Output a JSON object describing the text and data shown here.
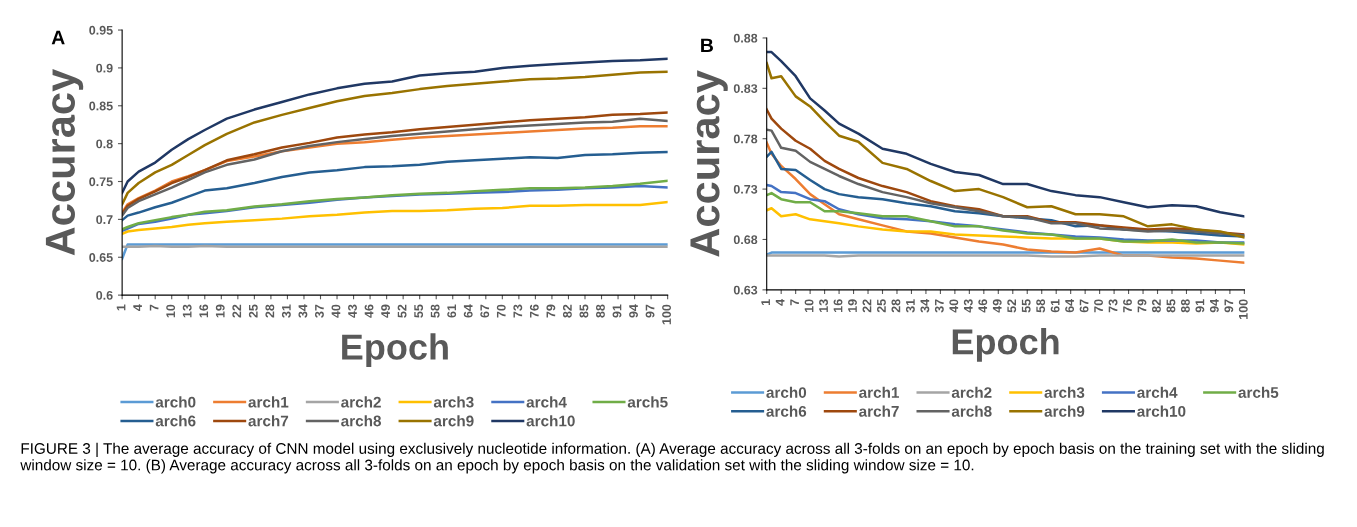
{
  "chart_data": [
    {
      "type": "line",
      "title": "A",
      "xlabel": "Epoch",
      "ylabel": "Accuracy",
      "legend": "bottom",
      "x": [
        1,
        2,
        4,
        7,
        10,
        13,
        16,
        20,
        25,
        30,
        35,
        40,
        45,
        50,
        55,
        60,
        65,
        70,
        75,
        80,
        85,
        90,
        95,
        100
      ],
      "xlim": [
        1,
        100
      ],
      "xticks": [
        1,
        4,
        7,
        10,
        13,
        16,
        19,
        22,
        25,
        28,
        31,
        34,
        37,
        40,
        43,
        46,
        49,
        52,
        55,
        58,
        61,
        64,
        67,
        70,
        73,
        76,
        79,
        82,
        85,
        88,
        91,
        94,
        97,
        100
      ],
      "ylim": [
        0.6,
        0.95
      ],
      "yticks": [
        0.6,
        0.65,
        0.7,
        0.75,
        0.8,
        0.85,
        0.9,
        0.95
      ],
      "annotations": [
        "FIGURE 3 | The average accuracy of CNN model using exclusively nucleotide information. (A) Average accuracy across all 3-folds on an epoch by epoch basis on the training set with the sliding window size = 10. (B) Average accuracy across all 3-folds on an epoch by epoch basis on the validation set with the sliding window size = 10."
      ],
      "series": [
        {
          "name": "arch0",
          "color": "#5b9bd5",
          "values": [
            0.648,
            0.667,
            0.667,
            0.667,
            0.667,
            0.667,
            0.667,
            0.667,
            0.667,
            0.667,
            0.667,
            0.667,
            0.667,
            0.667,
            0.667,
            0.667,
            0.667,
            0.667,
            0.667,
            0.667,
            0.667,
            0.667,
            0.667,
            0.667
          ]
        },
        {
          "name": "arch1",
          "color": "#ed7d31",
          "values": [
            0.709,
            0.72,
            0.728,
            0.738,
            0.75,
            0.757,
            0.765,
            0.777,
            0.783,
            0.79,
            0.795,
            0.8,
            0.802,
            0.805,
            0.808,
            0.81,
            0.812,
            0.814,
            0.816,
            0.818,
            0.82,
            0.821,
            0.823,
            0.823
          ]
        },
        {
          "name": "arch2",
          "color": "#a5a5a5",
          "values": [
            0.664,
            0.664,
            0.664,
            0.665,
            0.664,
            0.664,
            0.665,
            0.664,
            0.664,
            0.664,
            0.664,
            0.664,
            0.664,
            0.664,
            0.664,
            0.664,
            0.664,
            0.664,
            0.664,
            0.664,
            0.664,
            0.664,
            0.664,
            0.664
          ]
        },
        {
          "name": "arch3",
          "color": "#ffc000",
          "values": [
            0.681,
            0.684,
            0.686,
            0.688,
            0.69,
            0.693,
            0.695,
            0.697,
            0.699,
            0.701,
            0.704,
            0.706,
            0.709,
            0.711,
            0.711,
            0.712,
            0.714,
            0.715,
            0.718,
            0.718,
            0.719,
            0.719,
            0.719,
            0.723
          ]
        },
        {
          "name": "arch4",
          "color": "#4472c4",
          "values": [
            0.685,
            0.688,
            0.694,
            0.697,
            0.701,
            0.706,
            0.708,
            0.711,
            0.716,
            0.719,
            0.722,
            0.726,
            0.729,
            0.731,
            0.733,
            0.734,
            0.735,
            0.736,
            0.738,
            0.739,
            0.741,
            0.742,
            0.744,
            0.742
          ]
        },
        {
          "name": "arch5",
          "color": "#70ad47",
          "values": [
            0.687,
            0.69,
            0.695,
            0.699,
            0.703,
            0.706,
            0.71,
            0.712,
            0.717,
            0.72,
            0.724,
            0.727,
            0.729,
            0.732,
            0.734,
            0.735,
            0.737,
            0.739,
            0.741,
            0.741,
            0.742,
            0.744,
            0.747,
            0.751
          ]
        },
        {
          "name": "arch6",
          "color": "#255e91",
          "values": [
            0.699,
            0.705,
            0.709,
            0.716,
            0.722,
            0.73,
            0.738,
            0.741,
            0.748,
            0.756,
            0.762,
            0.765,
            0.769,
            0.77,
            0.772,
            0.776,
            0.778,
            0.78,
            0.782,
            0.781,
            0.785,
            0.786,
            0.788,
            0.789
          ]
        },
        {
          "name": "arch7",
          "color": "#9e480e",
          "values": [
            0.707,
            0.718,
            0.727,
            0.737,
            0.748,
            0.756,
            0.765,
            0.778,
            0.786,
            0.795,
            0.801,
            0.808,
            0.812,
            0.815,
            0.819,
            0.822,
            0.825,
            0.828,
            0.831,
            0.833,
            0.835,
            0.838,
            0.839,
            0.841
          ]
        },
        {
          "name": "arch8",
          "color": "#636363",
          "values": [
            0.705,
            0.715,
            0.724,
            0.733,
            0.742,
            0.752,
            0.762,
            0.772,
            0.779,
            0.79,
            0.797,
            0.802,
            0.806,
            0.81,
            0.813,
            0.816,
            0.819,
            0.822,
            0.824,
            0.826,
            0.828,
            0.829,
            0.833,
            0.83
          ]
        },
        {
          "name": "arch9",
          "color": "#997300",
          "values": [
            0.72,
            0.735,
            0.748,
            0.762,
            0.772,
            0.785,
            0.798,
            0.813,
            0.828,
            0.838,
            0.847,
            0.856,
            0.863,
            0.867,
            0.872,
            0.876,
            0.879,
            0.882,
            0.885,
            0.886,
            0.888,
            0.891,
            0.894,
            0.895
          ]
        },
        {
          "name": "arch10",
          "color": "#203864",
          "values": [
            0.735,
            0.75,
            0.763,
            0.775,
            0.792,
            0.806,
            0.818,
            0.833,
            0.845,
            0.855,
            0.865,
            0.873,
            0.879,
            0.882,
            0.89,
            0.893,
            0.895,
            0.9,
            0.903,
            0.905,
            0.907,
            0.909,
            0.91,
            0.912
          ]
        }
      ]
    },
    {
      "type": "line",
      "title": "B",
      "xlabel": "Epoch",
      "ylabel": "Accuracy",
      "legend": "bottom",
      "x": [
        1,
        2,
        4,
        7,
        10,
        13,
        16,
        20,
        25,
        30,
        35,
        40,
        45,
        50,
        55,
        60,
        65,
        70,
        75,
        80,
        85,
        90,
        95,
        100
      ],
      "xlim": [
        1,
        100
      ],
      "xticks": [
        1,
        4,
        7,
        10,
        13,
        16,
        19,
        22,
        25,
        28,
        31,
        34,
        37,
        40,
        43,
        46,
        49,
        52,
        55,
        58,
        61,
        64,
        67,
        70,
        73,
        76,
        79,
        82,
        85,
        88,
        91,
        94,
        97,
        100
      ],
      "ylim": [
        0.63,
        0.88
      ],
      "yticks": [
        0.63,
        0.68,
        0.73,
        0.78,
        0.83,
        0.88
      ],
      "series": [
        {
          "name": "arch0",
          "color": "#5b9bd5",
          "values": [
            0.665,
            0.667,
            0.667,
            0.667,
            0.667,
            0.667,
            0.667,
            0.667,
            0.667,
            0.667,
            0.667,
            0.667,
            0.667,
            0.667,
            0.667,
            0.667,
            0.667,
            0.667,
            0.667,
            0.667,
            0.667,
            0.667,
            0.667,
            0.667
          ]
        },
        {
          "name": "arch1",
          "color": "#ed7d31",
          "values": [
            0.776,
            0.765,
            0.753,
            0.74,
            0.725,
            0.715,
            0.705,
            0.7,
            0.694,
            0.688,
            0.686,
            0.682,
            0.678,
            0.675,
            0.67,
            0.668,
            0.667,
            0.671,
            0.664,
            0.664,
            0.662,
            0.661,
            0.659,
            0.657
          ]
        },
        {
          "name": "arch2",
          "color": "#a5a5a5",
          "values": [
            0.664,
            0.664,
            0.664,
            0.664,
            0.664,
            0.664,
            0.663,
            0.664,
            0.664,
            0.664,
            0.664,
            0.664,
            0.664,
            0.664,
            0.664,
            0.663,
            0.663,
            0.664,
            0.664,
            0.664,
            0.664,
            0.664,
            0.664,
            0.664
          ]
        },
        {
          "name": "arch3",
          "color": "#ffc000",
          "values": [
            0.709,
            0.711,
            0.703,
            0.705,
            0.7,
            0.698,
            0.696,
            0.693,
            0.69,
            0.688,
            0.688,
            0.685,
            0.684,
            0.683,
            0.682,
            0.681,
            0.681,
            0.681,
            0.678,
            0.677,
            0.677,
            0.676,
            0.677,
            0.675
          ]
        },
        {
          "name": "arch4",
          "color": "#4472c4",
          "values": [
            0.734,
            0.733,
            0.727,
            0.726,
            0.72,
            0.718,
            0.71,
            0.705,
            0.701,
            0.7,
            0.698,
            0.695,
            0.693,
            0.69,
            0.687,
            0.685,
            0.683,
            0.682,
            0.68,
            0.679,
            0.679,
            0.679,
            0.677,
            0.677
          ]
        },
        {
          "name": "arch5",
          "color": "#70ad47",
          "values": [
            0.724,
            0.726,
            0.72,
            0.717,
            0.717,
            0.708,
            0.708,
            0.706,
            0.703,
            0.703,
            0.698,
            0.693,
            0.693,
            0.689,
            0.686,
            0.685,
            0.681,
            0.681,
            0.678,
            0.678,
            0.68,
            0.677,
            0.677,
            0.676
          ]
        },
        {
          "name": "arch6",
          "color": "#255e91",
          "values": [
            0.762,
            0.767,
            0.75,
            0.749,
            0.739,
            0.73,
            0.725,
            0.722,
            0.72,
            0.716,
            0.713,
            0.708,
            0.706,
            0.703,
            0.701,
            0.699,
            0.693,
            0.694,
            0.69,
            0.689,
            0.688,
            0.686,
            0.684,
            0.683
          ]
        },
        {
          "name": "arch7",
          "color": "#9e480e",
          "values": [
            0.809,
            0.8,
            0.79,
            0.778,
            0.77,
            0.758,
            0.75,
            0.741,
            0.733,
            0.727,
            0.718,
            0.713,
            0.71,
            0.703,
            0.703,
            0.697,
            0.697,
            0.694,
            0.692,
            0.69,
            0.691,
            0.69,
            0.687,
            0.685
          ]
        },
        {
          "name": "arch8",
          "color": "#636363",
          "values": [
            0.789,
            0.788,
            0.771,
            0.768,
            0.757,
            0.75,
            0.743,
            0.735,
            0.727,
            0.722,
            0.716,
            0.712,
            0.708,
            0.703,
            0.702,
            0.696,
            0.696,
            0.691,
            0.69,
            0.688,
            0.689,
            0.688,
            0.686,
            0.684
          ]
        },
        {
          "name": "arch9",
          "color": "#997300",
          "values": [
            0.855,
            0.84,
            0.842,
            0.822,
            0.812,
            0.797,
            0.783,
            0.777,
            0.756,
            0.75,
            0.738,
            0.728,
            0.73,
            0.722,
            0.712,
            0.713,
            0.705,
            0.705,
            0.703,
            0.693,
            0.695,
            0.69,
            0.688,
            0.682
          ]
        },
        {
          "name": "arch10",
          "color": "#203864",
          "values": [
            0.866,
            0.866,
            0.857,
            0.842,
            0.82,
            0.808,
            0.795,
            0.785,
            0.77,
            0.765,
            0.755,
            0.747,
            0.744,
            0.735,
            0.735,
            0.728,
            0.724,
            0.722,
            0.717,
            0.712,
            0.714,
            0.713,
            0.707,
            0.703
          ]
        }
      ]
    }
  ]
}
